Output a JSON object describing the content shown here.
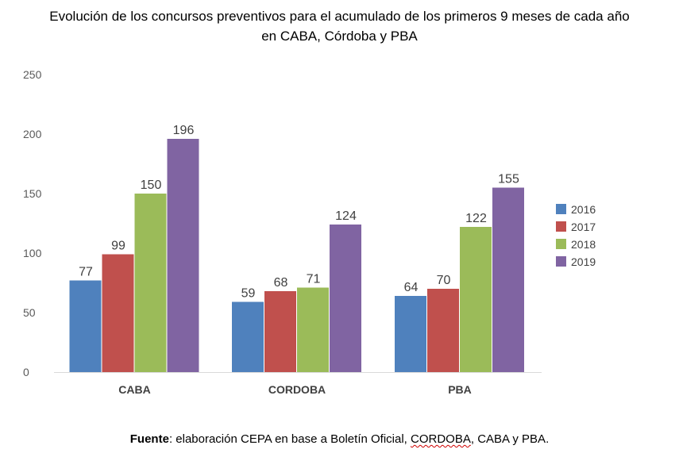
{
  "chart_data": {
    "type": "bar",
    "title_line1": "Evolución de los concursos preventivos para el acumulado de los primeros 9 meses de cada año",
    "title_line2": "en CABA, Córdoba y PBA",
    "categories": [
      "CABA",
      "CORDOBA",
      "PBA"
    ],
    "series": [
      {
        "name": "2016",
        "color": "#4f81bd",
        "values": [
          77,
          59,
          64
        ]
      },
      {
        "name": "2017",
        "color": "#c0504d",
        "values": [
          99,
          68,
          70
        ]
      },
      {
        "name": "2018",
        "color": "#9bbb59",
        "values": [
          150,
          71,
          122
        ]
      },
      {
        "name": "2019",
        "color": "#8064a2",
        "values": [
          196,
          124,
          155
        ]
      }
    ],
    "yticks": [
      0,
      50,
      100,
      150,
      200,
      250
    ],
    "ylim": [
      0,
      250
    ],
    "grid": false,
    "legend_position": "right"
  },
  "footer": {
    "label": "Fuente",
    "text_before": ": elaboración CEPA en base a Boletín Oficial, ",
    "underlined": "CORDOBA",
    "text_after": ", CABA y PBA."
  }
}
